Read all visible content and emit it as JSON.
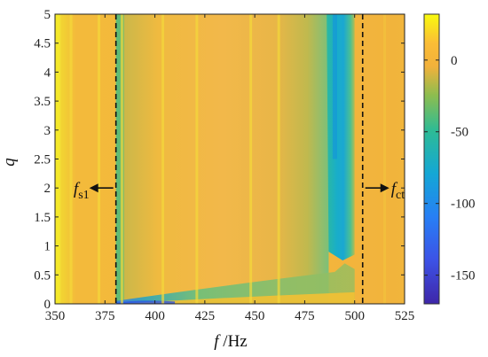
{
  "chart_data": {
    "type": "heatmap",
    "title": "",
    "x": {
      "label_italic": "f",
      "label_unit": " /Hz",
      "range": [
        350,
        525
      ],
      "ticks": [
        350,
        375,
        400,
        425,
        450,
        475,
        500,
        525
      ]
    },
    "y": {
      "label_italic": "q",
      "range": [
        0,
        5
      ],
      "ticks": [
        0,
        0.5,
        1,
        1.5,
        2,
        2.5,
        3,
        3.5,
        4,
        4.5,
        5
      ]
    },
    "colorbar": {
      "range": [
        -170,
        32
      ],
      "ticks": [
        0,
        -50,
        -100,
        -150
      ],
      "colormap": "parula"
    },
    "markers": [
      {
        "name": "fs1",
        "main": "f",
        "sub": "s1",
        "x": 380.5,
        "arrow": "left"
      },
      {
        "name": "fct",
        "main": "f",
        "sub": "ct",
        "x": 504,
        "arrow": "right"
      }
    ],
    "annotation_y": 2
  }
}
